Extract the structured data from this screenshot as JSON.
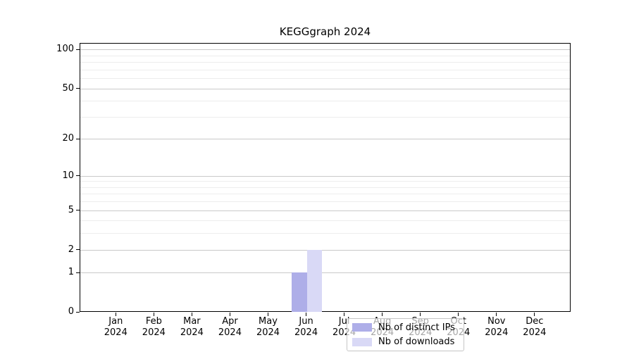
{
  "chart_data": {
    "type": "bar",
    "title": "KEGGgraph 2024",
    "categories": [
      "Jan",
      "Feb",
      "Mar",
      "Apr",
      "May",
      "Jun",
      "Jul",
      "Aug",
      "Sep",
      "Oct",
      "Nov",
      "Dec"
    ],
    "category_year": "2024",
    "series": [
      {
        "name": "Nb of distinct IPs",
        "color": "#aeaee8",
        "values": [
          0,
          0,
          0,
          0,
          0,
          1,
          0,
          0,
          0,
          0,
          0,
          0
        ]
      },
      {
        "name": "Nb of downloads",
        "color": "#d9d9f6",
        "values": [
          0,
          0,
          0,
          0,
          0,
          2,
          0,
          0,
          0,
          0,
          0,
          0
        ]
      }
    ],
    "yscale": "log10(1+x)",
    "ylim": [
      0,
      112
    ],
    "y_major_ticks": [
      0,
      1,
      2,
      5,
      10,
      20,
      50,
      100
    ],
    "y_minor_gridlines": [
      3,
      4,
      6,
      7,
      8,
      9,
      30,
      40,
      60,
      70,
      80,
      90
    ],
    "grid": "on",
    "xlabel": "",
    "ylabel": "",
    "legend_position": "bottom-center",
    "colors": {
      "axis": "#000000",
      "major_grid": "#c9c9c9",
      "minor_grid": "#ededed",
      "legend_border": "#c6c6c6",
      "background": "#ffffff"
    }
  }
}
